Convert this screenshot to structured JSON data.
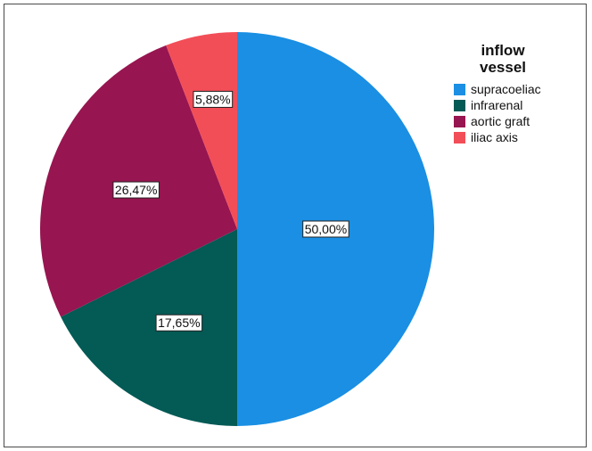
{
  "chart_data": {
    "type": "pie",
    "legend_title": [
      "inflow",
      "vessel"
    ],
    "legend_position": "top-right",
    "categories": [
      "supracoeliac",
      "infrarenal",
      "aortic graft",
      "iliac axis"
    ],
    "values": [
      50.0,
      17.65,
      26.47,
      5.88
    ],
    "data_labels": [
      "50,00%",
      "17,65%",
      "26,47%",
      "5,88%"
    ],
    "colors": [
      "#1a8fe3",
      "#045a55",
      "#971550",
      "#f24e58"
    ],
    "start_angle_deg": 0,
    "direction": "clockwise"
  }
}
